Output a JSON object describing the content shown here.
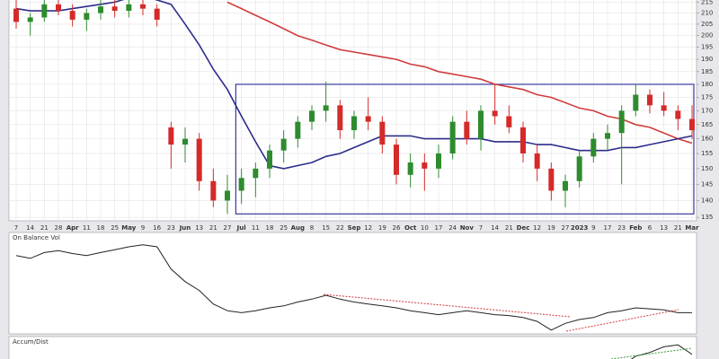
{
  "chart_data": [
    {
      "type": "candlestick",
      "log_scale": true,
      "grid": true,
      "categories": [
        "7",
        "14",
        "21",
        "28",
        "Apr",
        "11",
        "18",
        "25",
        "May",
        "9",
        "16",
        "23",
        "Jun",
        "13",
        "21",
        "27",
        "Jul",
        "11",
        "18",
        "25",
        "Aug",
        "8",
        "15",
        "22",
        "Sep",
        "12",
        "19",
        "26",
        "Oct",
        "10",
        "17",
        "24",
        "Nov",
        "7",
        "14",
        "21",
        "Dec",
        "12",
        "19",
        "27",
        "2023",
        "9",
        "17",
        "23",
        "Feb",
        "6",
        "13",
        "21",
        "Mar"
      ],
      "up_color": "#2e8b2e",
      "down_color": "#d42a2a",
      "open": [
        212,
        206,
        208,
        214,
        211,
        207,
        210,
        213,
        211,
        214,
        212,
        164,
        158,
        160,
        146,
        140,
        143,
        147,
        150,
        156,
        160,
        166,
        170,
        172,
        163,
        168,
        166,
        158,
        148,
        152,
        150,
        155,
        166,
        160,
        170,
        168,
        164,
        155,
        150,
        143,
        146,
        154,
        160,
        162,
        170,
        176,
        172,
        170,
        167
      ],
      "high": [
        216,
        210,
        216,
        218,
        214,
        212,
        216,
        217,
        216,
        218,
        214,
        166,
        164,
        162,
        150,
        148,
        150,
        152,
        158,
        163,
        168,
        172,
        181,
        174,
        170,
        175,
        168,
        160,
        155,
        155,
        158,
        168,
        170,
        172,
        180,
        172,
        166,
        158,
        152,
        148,
        156,
        162,
        165,
        172,
        180,
        178,
        177,
        172,
        172
      ],
      "low": [
        203,
        200,
        206,
        209,
        204,
        202,
        207,
        208,
        208,
        209,
        204,
        150,
        152,
        143,
        138,
        136,
        139,
        141,
        147,
        152,
        157,
        163,
        166,
        160,
        160,
        163,
        155,
        145,
        144,
        143,
        147,
        153,
        158,
        156,
        165,
        162,
        152,
        146,
        140,
        138,
        144,
        152,
        156,
        145,
        168,
        169,
        168,
        163,
        160
      ],
      "close": [
        206,
        208,
        214,
        211,
        207,
        210,
        213,
        211,
        214,
        212,
        207,
        158,
        160,
        146,
        140,
        143,
        147,
        150,
        156,
        160,
        166,
        170,
        172,
        163,
        168,
        166,
        158,
        148,
        152,
        150,
        155,
        166,
        160,
        170,
        168,
        164,
        155,
        150,
        143,
        146,
        154,
        160,
        162,
        170,
        176,
        172,
        170,
        167,
        163
      ],
      "series": [
        {
          "type": "line",
          "color": "#d23c3c",
          "values": [
            null,
            null,
            null,
            null,
            null,
            null,
            null,
            null,
            null,
            null,
            null,
            null,
            null,
            null,
            null,
            215,
            212,
            209,
            206,
            203,
            200,
            198,
            196,
            194,
            193,
            192,
            191,
            190,
            188,
            187,
            185,
            184,
            183,
            182,
            180,
            179,
            178,
            176,
            175,
            173,
            171,
            170,
            168,
            167,
            165,
            164,
            162,
            160,
            158.5
          ]
        },
        {
          "type": "line",
          "color": "#2c2c8c",
          "values": [
            212,
            211,
            211,
            211,
            212,
            213,
            214,
            215,
            217,
            218,
            216,
            214,
            205,
            196,
            186,
            178,
            168,
            159,
            151,
            150,
            151,
            152,
            154,
            155,
            157,
            159,
            161,
            161,
            161,
            160,
            160,
            160,
            160,
            160,
            159,
            159,
            159,
            158,
            158,
            157,
            156,
            156,
            156,
            157,
            157,
            158,
            159,
            160,
            161
          ]
        }
      ],
      "range_box": {
        "high": 180,
        "low": 136,
        "color": "#3a3aa0"
      },
      "ylim": [
        134,
        216
      ],
      "yticks": [
        135,
        140,
        145,
        150,
        155,
        160,
        165,
        170,
        175,
        180,
        185,
        190,
        195,
        200,
        205,
        210,
        215
      ]
    },
    {
      "type": "line",
      "title": "On Balance Vol",
      "color": "#222222",
      "values": [
        79,
        76,
        82,
        84,
        81,
        79,
        82,
        85,
        88,
        90,
        88,
        65,
        52,
        43,
        29,
        22,
        20,
        22,
        25,
        27,
        31,
        34,
        38,
        34,
        31,
        29,
        27,
        25,
        22,
        20,
        18,
        20,
        22,
        20,
        18,
        17,
        15,
        11,
        2,
        9,
        13,
        15,
        20,
        22,
        25,
        24,
        23,
        20,
        20
      ],
      "ylim": [
        0,
        100
      ]
    },
    {
      "type": "line",
      "title": "Accum/Dist",
      "color": "#222222",
      "values": [
        null,
        null,
        null,
        null,
        null,
        null,
        null,
        null,
        null,
        null,
        null,
        null,
        null,
        null,
        null,
        null,
        null,
        null,
        null,
        null,
        null,
        null,
        null,
        null,
        null,
        null,
        null,
        null,
        null,
        null,
        null,
        null,
        null,
        null,
        null,
        null,
        null,
        null,
        null,
        null,
        null,
        null,
        10,
        30,
        55,
        65,
        80,
        85,
        60
      ],
      "ylim": [
        0,
        100
      ]
    }
  ]
}
